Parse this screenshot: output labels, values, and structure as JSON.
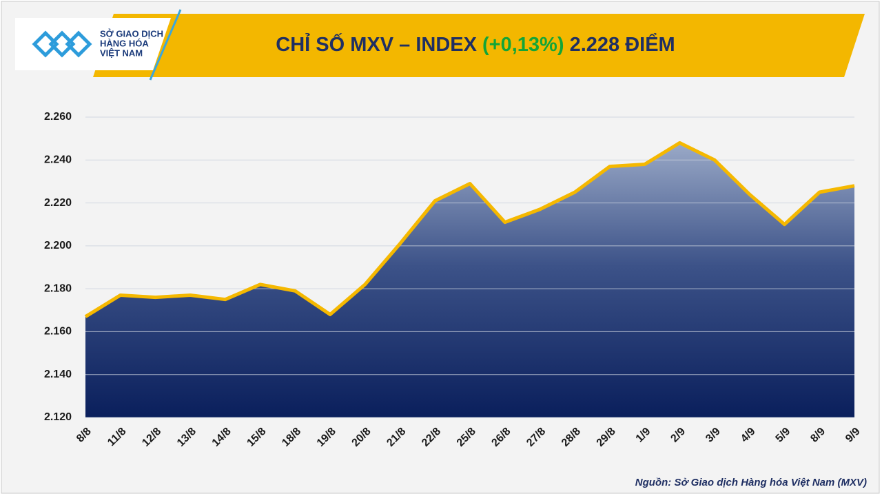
{
  "chart_data": {
    "type": "area",
    "title": "CHỈ SỐ MXV – INDEX",
    "title_change": "(+0,13%)",
    "title_value": "2.228 ĐIỂM",
    "logo": [
      "SỞ GIAO DỊCH",
      "HÀNG HÓA",
      "VIỆT NAM"
    ],
    "source": "Nguồn: Sở Giao dịch Hàng hóa Việt Nam (MXV)",
    "categories": [
      "8/8",
      "11/8",
      "12/8",
      "13/8",
      "14/8",
      "15/8",
      "18/8",
      "19/8",
      "20/8",
      "21/8",
      "22/8",
      "25/8",
      "26/8",
      "27/8",
      "28/8",
      "29/8",
      "1/9",
      "2/9",
      "3/9",
      "4/9",
      "5/9",
      "8/9",
      "9/9"
    ],
    "values": [
      2167,
      2177,
      2176,
      2177,
      2175,
      2182,
      2179,
      2168,
      2182,
      2201,
      2221,
      2229,
      2211,
      2217,
      2225,
      2237,
      2238,
      2248,
      2240,
      2224,
      2210,
      2225,
      2228
    ],
    "color": "#f5b800",
    "ylim": [
      2120,
      2260
    ],
    "yticks": [
      {
        "value": 2120,
        "label": "2.120"
      },
      {
        "value": 2140,
        "label": "2.140"
      },
      {
        "value": 2160,
        "label": "2.160"
      },
      {
        "value": 2180,
        "label": "2.180"
      },
      {
        "value": 2200,
        "label": "2.200"
      },
      {
        "value": 2220,
        "label": "2.220"
      },
      {
        "value": 2240,
        "label": "2.240"
      },
      {
        "value": 2260,
        "label": "2.260"
      }
    ],
    "grid": true
  }
}
